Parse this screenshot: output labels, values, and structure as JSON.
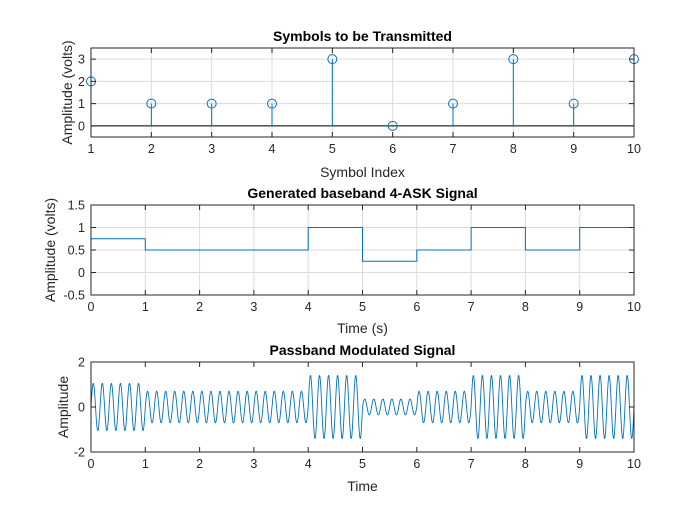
{
  "chart_data": [
    {
      "type": "stem",
      "title": "Symbols to be Transmitted",
      "xlabel": "Symbol Index",
      "ylabel": "Amplitude (volts)",
      "xlim": [
        1,
        10
      ],
      "ylim": [
        -0.5,
        3.5
      ],
      "xticks": [
        1,
        2,
        3,
        4,
        5,
        6,
        7,
        8,
        9,
        10
      ],
      "yticks": [
        0,
        1,
        2,
        3
      ],
      "grid": true,
      "series": [
        {
          "x": [
            1,
            2,
            3,
            4,
            5,
            6,
            7,
            8,
            9,
            10
          ],
          "values": [
            2,
            1,
            1,
            1,
            3,
            0,
            1,
            3,
            1,
            3
          ]
        }
      ],
      "color": "#0072BD"
    },
    {
      "type": "line",
      "title": "Generated baseband 4-ASK Signal",
      "xlabel": "Time (s)",
      "ylabel": "Amplitude (volts)",
      "xlim": [
        0,
        10
      ],
      "ylim": [
        -0.5,
        1.5
      ],
      "xticks": [
        0,
        1,
        2,
        3,
        4,
        5,
        6,
        7,
        8,
        9,
        10
      ],
      "yticks": [
        -0.5,
        0,
        0.5,
        1,
        1.5
      ],
      "grid": true,
      "step": true,
      "series": [
        {
          "x": [
            0,
            1,
            2,
            3,
            4,
            5,
            6,
            7,
            8,
            9
          ],
          "values": [
            0.75,
            0.5,
            0.5,
            0.5,
            1,
            0.25,
            0.5,
            1,
            0.5,
            1
          ]
        }
      ],
      "color": "#0072BD"
    },
    {
      "type": "line",
      "title": "Passband Modulated Signal",
      "xlabel": "Time",
      "ylabel": "Amplitude",
      "xlim": [
        0,
        10
      ],
      "ylim": [
        -2,
        2
      ],
      "xticks": [
        0,
        1,
        2,
        3,
        4,
        5,
        6,
        7,
        8,
        9,
        10
      ],
      "yticks": [
        -2,
        0,
        2
      ],
      "grid": false,
      "carrier_cycles_per_second": 6,
      "series": [
        {
          "x": [
            0,
            1,
            2,
            3,
            4,
            5,
            6,
            7,
            8,
            9
          ],
          "envelope": [
            1.05,
            0.7,
            0.7,
            0.7,
            1.4,
            0.35,
            0.7,
            1.4,
            0.7,
            1.4
          ]
        }
      ],
      "color": "#0072BD"
    }
  ]
}
